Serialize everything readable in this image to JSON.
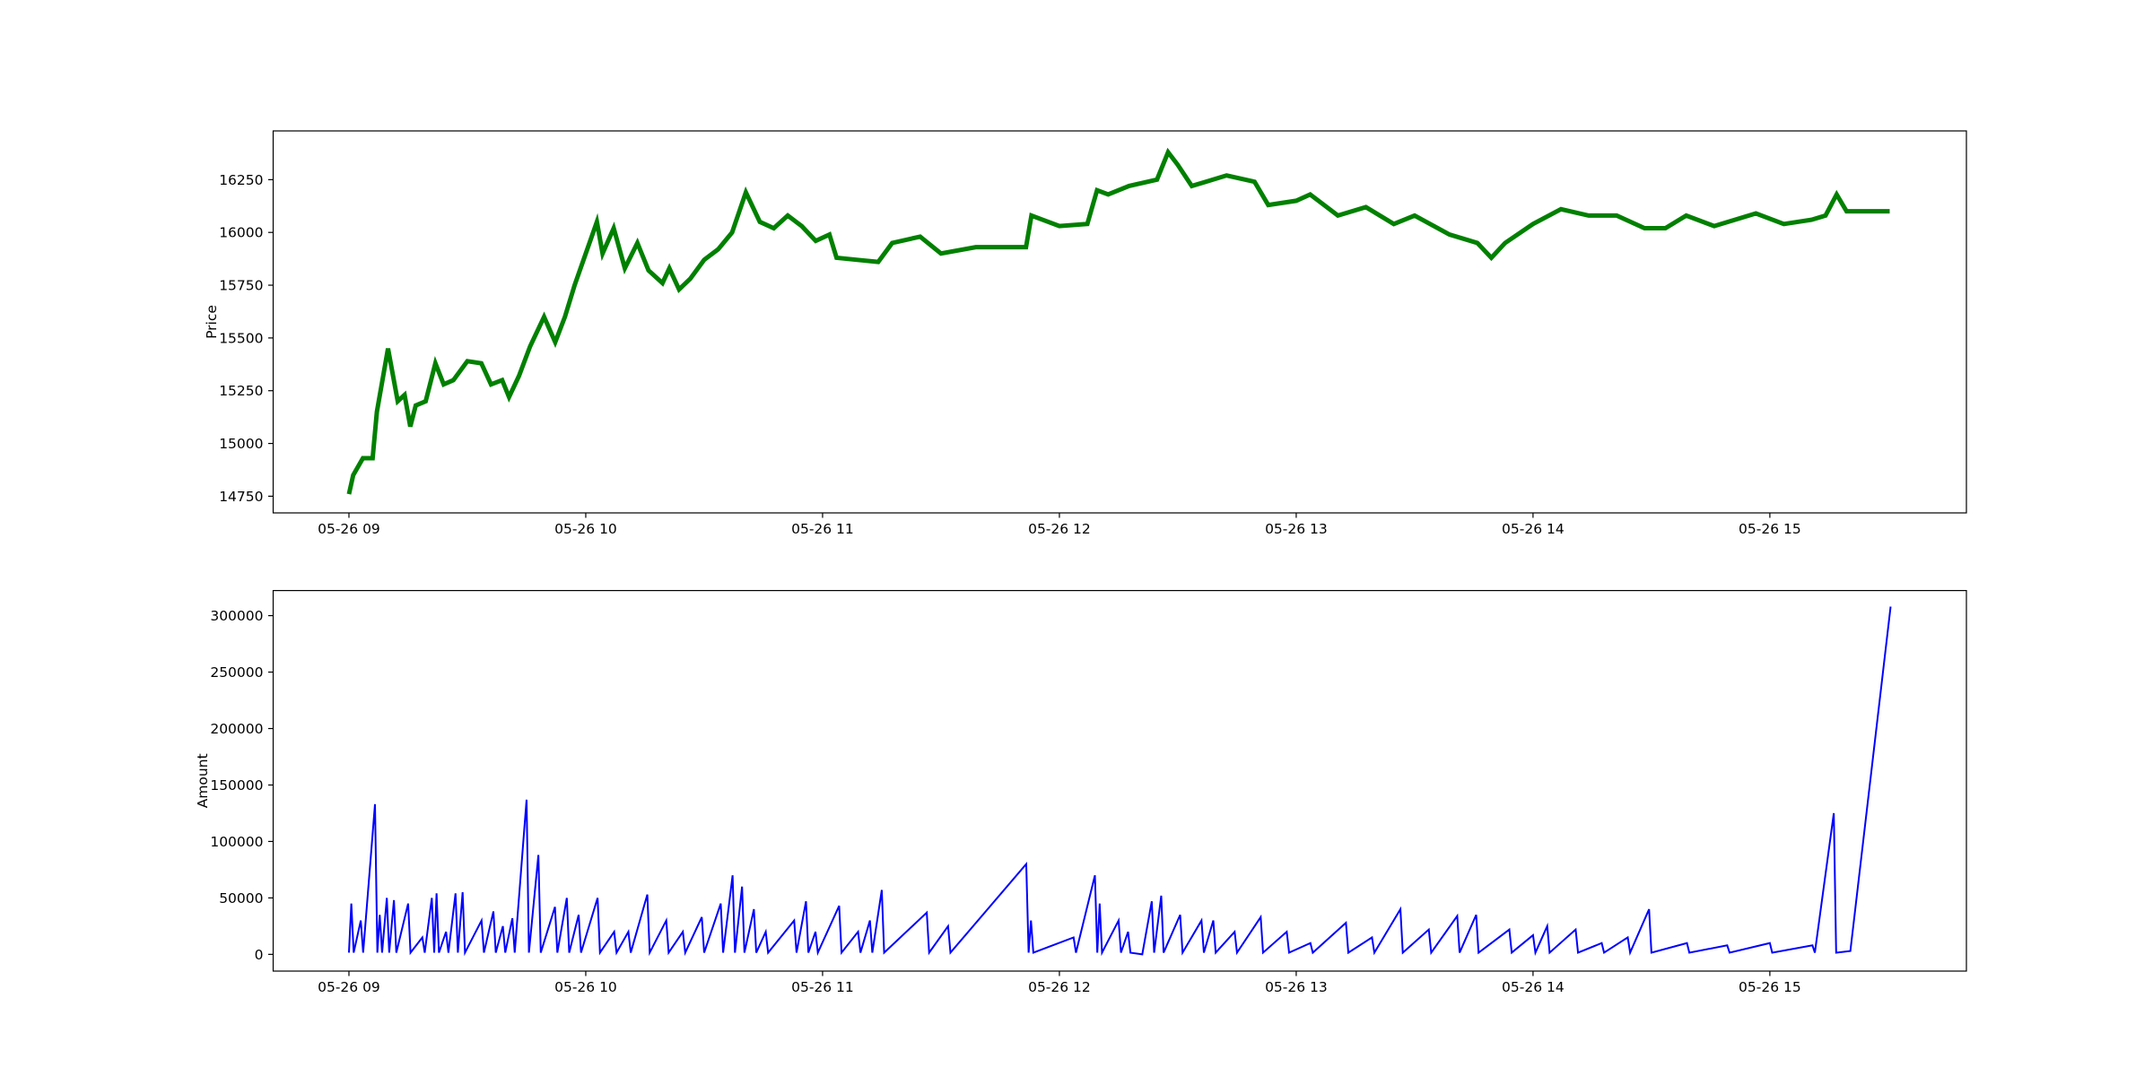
{
  "chart_data": [
    {
      "type": "line",
      "ylabel": "Price",
      "linewidth": 5,
      "xlim": [
        8.68,
        15.83
      ],
      "ylim": [
        14671,
        16481
      ],
      "xticks": [
        {
          "value": 9,
          "label": "05-26 09"
        },
        {
          "value": 10,
          "label": "05-26 10"
        },
        {
          "value": 11,
          "label": "05-26 11"
        },
        {
          "value": 12,
          "label": "05-26 12"
        },
        {
          "value": 13,
          "label": "05-26 13"
        },
        {
          "value": 14,
          "label": "05-26 14"
        },
        {
          "value": 15,
          "label": "05-26 15"
        }
      ],
      "yticks": [
        14750,
        15000,
        15250,
        15500,
        15750,
        16000,
        16250
      ],
      "x": [
        9.0,
        9.018,
        9.059,
        9.1,
        9.118,
        9.165,
        9.206,
        9.235,
        9.259,
        9.282,
        9.324,
        9.365,
        9.4,
        9.441,
        9.5,
        9.559,
        9.6,
        9.647,
        9.676,
        9.718,
        9.765,
        9.824,
        9.871,
        9.912,
        9.953,
        10.0,
        10.047,
        10.071,
        10.118,
        10.165,
        10.218,
        10.265,
        10.324,
        10.353,
        10.394,
        10.441,
        10.5,
        10.559,
        10.618,
        10.676,
        10.735,
        10.794,
        10.853,
        10.912,
        10.971,
        11.029,
        11.059,
        11.147,
        11.235,
        11.294,
        11.412,
        11.5,
        11.647,
        11.859,
        11.882,
        11.929,
        12.0,
        12.118,
        12.159,
        12.206,
        12.294,
        12.412,
        12.459,
        12.5,
        12.559,
        12.618,
        12.706,
        12.824,
        12.882,
        13.0,
        13.059,
        13.176,
        13.294,
        13.412,
        13.5,
        13.647,
        13.765,
        13.824,
        13.882,
        14.0,
        14.118,
        14.235,
        14.353,
        14.471,
        14.559,
        14.647,
        14.765,
        14.941,
        15.059,
        15.176,
        15.235,
        15.282,
        15.324,
        15.506
      ],
      "series": [
        {
          "color": "#008000",
          "values": [
            14760,
            14850,
            14930,
            14930,
            15150,
            15450,
            15200,
            15230,
            15080,
            15180,
            15200,
            15380,
            15280,
            15300,
            15390,
            15380,
            15280,
            15300,
            15220,
            15320,
            15460,
            15600,
            15480,
            15600,
            15750,
            15900,
            16050,
            15900,
            16020,
            15830,
            15950,
            15820,
            15760,
            15830,
            15730,
            15780,
            15870,
            15920,
            16000,
            16190,
            16050,
            16020,
            16080,
            16030,
            15960,
            15990,
            15880,
            15870,
            15860,
            15950,
            15980,
            15900,
            15930,
            15930,
            16080,
            16060,
            16030,
            16040,
            16200,
            16180,
            16220,
            16250,
            16380,
            16320,
            16220,
            16240,
            16270,
            16240,
            16130,
            16150,
            16180,
            16080,
            16120,
            16040,
            16080,
            15990,
            15950,
            15880,
            15950,
            16040,
            16110,
            16080,
            16080,
            16020,
            16020,
            16080,
            16030,
            16090,
            16040,
            16060,
            16080,
            16180,
            16100,
            16100
          ]
        }
      ]
    },
    {
      "type": "line",
      "ylabel": "Amount",
      "linewidth": 2,
      "xlim": [
        8.68,
        15.83
      ],
      "ylim": [
        -14815,
        322222
      ],
      "xticks": [
        {
          "value": 9,
          "label": "05-26 09"
        },
        {
          "value": 10,
          "label": "05-26 10"
        },
        {
          "value": 11,
          "label": "05-26 11"
        },
        {
          "value": 12,
          "label": "05-26 12"
        },
        {
          "value": 13,
          "label": "05-26 13"
        },
        {
          "value": 14,
          "label": "05-26 14"
        },
        {
          "value": 15,
          "label": "05-26 15"
        }
      ],
      "yticks": [
        0,
        50000,
        100000,
        150000,
        200000,
        250000,
        300000
      ],
      "x": [
        9.0,
        9.01,
        9.02,
        9.05,
        9.06,
        9.11,
        9.12,
        9.13,
        9.14,
        9.16,
        9.17,
        9.19,
        9.2,
        9.25,
        9.26,
        9.31,
        9.32,
        9.35,
        9.36,
        9.37,
        9.38,
        9.41,
        9.42,
        9.45,
        9.46,
        9.48,
        9.49,
        9.56,
        9.57,
        9.61,
        9.62,
        9.65,
        9.66,
        9.69,
        9.7,
        9.75,
        9.76,
        9.8,
        9.81,
        9.87,
        9.88,
        9.92,
        9.93,
        9.97,
        9.98,
        10.05,
        10.06,
        10.12,
        10.13,
        10.18,
        10.19,
        10.26,
        10.27,
        10.34,
        10.35,
        10.41,
        10.42,
        10.49,
        10.5,
        10.57,
        10.58,
        10.62,
        10.63,
        10.66,
        10.67,
        10.71,
        10.72,
        10.76,
        10.77,
        10.88,
        10.89,
        10.93,
        10.94,
        10.97,
        10.98,
        11.07,
        11.08,
        11.15,
        11.16,
        11.2,
        11.21,
        11.25,
        11.26,
        11.44,
        11.45,
        11.53,
        11.54,
        11.86,
        11.87,
        11.88,
        11.89,
        12.06,
        12.07,
        12.15,
        12.16,
        12.17,
        12.18,
        12.25,
        12.26,
        12.29,
        12.3,
        12.35,
        12.39,
        12.4,
        12.43,
        12.44,
        12.51,
        12.52,
        12.6,
        12.61,
        12.65,
        12.66,
        12.74,
        12.75,
        12.85,
        12.86,
        12.96,
        12.97,
        13.06,
        13.07,
        13.21,
        13.22,
        13.32,
        13.33,
        13.44,
        13.45,
        13.56,
        13.57,
        13.68,
        13.69,
        13.76,
        13.77,
        13.9,
        13.91,
        14.0,
        14.01,
        14.06,
        14.07,
        14.18,
        14.19,
        14.29,
        14.3,
        14.4,
        14.41,
        14.49,
        14.5,
        14.65,
        14.66,
        14.82,
        14.83,
        15.0,
        15.01,
        15.18,
        15.19,
        15.27,
        15.28,
        15.34,
        15.51
      ],
      "series": [
        {
          "color": "#0000ff",
          "values": [
            1500,
            45000,
            1500,
            30000,
            1500,
            133000,
            1500,
            35000,
            1500,
            50000,
            1500,
            48000,
            1500,
            45000,
            1500,
            15000,
            1500,
            50000,
            1500,
            54000,
            1500,
            20000,
            1500,
            54000,
            1500,
            55000,
            1500,
            30000,
            1500,
            38000,
            1500,
            25000,
            1500,
            32000,
            1500,
            137000,
            1500,
            88000,
            1500,
            42000,
            1500,
            50000,
            1500,
            35000,
            1500,
            50000,
            1500,
            20000,
            1500,
            20000,
            1500,
            53000,
            1500,
            30000,
            1500,
            20000,
            1500,
            33000,
            1500,
            45000,
            1500,
            70000,
            1500,
            60000,
            1500,
            40000,
            1500,
            20000,
            1500,
            30000,
            1500,
            47000,
            1500,
            20000,
            1500,
            43000,
            1500,
            20000,
            1500,
            30000,
            1500,
            57000,
            1500,
            37000,
            1500,
            25000,
            1500,
            80000,
            1500,
            30000,
            1500,
            15000,
            1500,
            70000,
            1500,
            45000,
            1500,
            30000,
            1500,
            20000,
            1500,
            0,
            47000,
            1500,
            52000,
            1500,
            35000,
            1500,
            30000,
            1500,
            30000,
            1500,
            20000,
            1500,
            33000,
            1500,
            20000,
            1500,
            10000,
            1500,
            28000,
            1500,
            15000,
            1500,
            40000,
            1500,
            22000,
            1500,
            34000,
            1500,
            35000,
            1500,
            22000,
            1500,
            17000,
            1500,
            25000,
            1500,
            22000,
            1500,
            10000,
            1500,
            15000,
            1500,
            40000,
            1500,
            10000,
            1500,
            8000,
            1500,
            10000,
            1500,
            8000,
            1500,
            125000,
            1500,
            3000,
            308000
          ]
        }
      ]
    }
  ]
}
